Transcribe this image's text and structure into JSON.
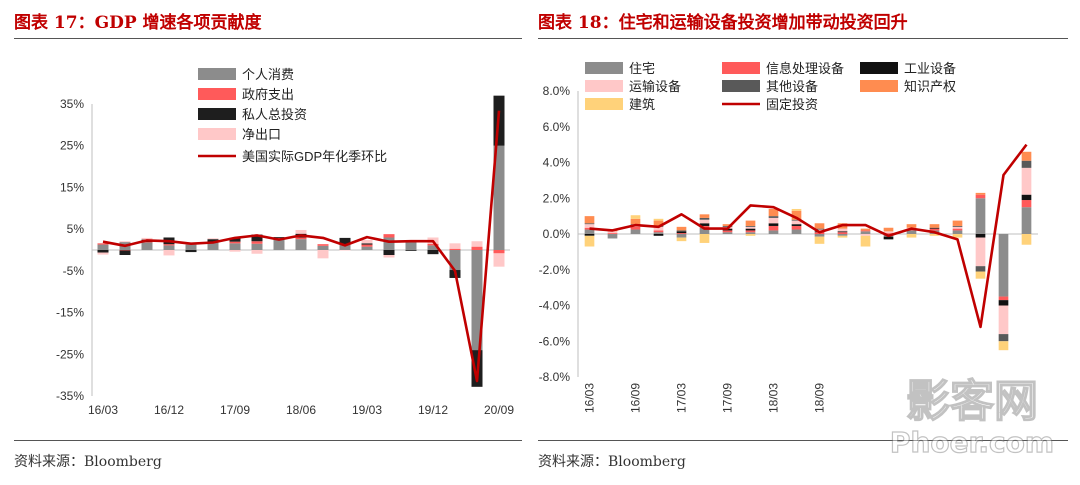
{
  "left": {
    "title": "图表 17：GDP 增速各项贡献度",
    "source": "资料来源：Bloomberg"
  },
  "right": {
    "title": "图表 18：住宅和运输设备投资增加带动投资回升",
    "source": "资料来源：Bloomberg"
  },
  "watermark": {
    "line1": "影客网",
    "line2": "Phoer.com"
  },
  "chart_data": [
    {
      "type": "bar",
      "stacked": true,
      "ylim": [
        -35,
        35
      ],
      "yticks": [
        "35%",
        "25%",
        "15%",
        "5%",
        "-5%",
        "-15%",
        "-25%",
        "-35%"
      ],
      "ytick_values": [
        35,
        25,
        15,
        5,
        -5,
        -15,
        -25,
        -35
      ],
      "xtick_labels": [
        "16/03",
        "16/12",
        "17/09",
        "18/06",
        "19/03",
        "19/12",
        "20/09"
      ],
      "xtick_indices": [
        0,
        3,
        6,
        9,
        12,
        15,
        18
      ],
      "legend_position": "top",
      "series": [
        {
          "name": "个人消费",
          "kind": "bar",
          "color": "#8c8c8c",
          "values": [
            1.3,
            1.9,
            1.8,
            1.1,
            1.3,
            1.9,
            1.6,
            1.5,
            2.5,
            2.6,
            1.0,
            1.3,
            0.8,
            3.0,
            2.1,
            1.1,
            -4.8,
            -24.0,
            25.0
          ]
        },
        {
          "name": "政府支出",
          "kind": "bar",
          "color": "#ff5a5a",
          "values": [
            0.3,
            -0.1,
            0.1,
            0.3,
            0.0,
            0.1,
            0.4,
            0.6,
            0.4,
            0.4,
            0.4,
            0.0,
            0.5,
            0.8,
            0.3,
            0.4,
            0.3,
            0.8,
            -0.8
          ]
        },
        {
          "name": "私人总投资",
          "kind": "bar",
          "color": "#1e1e1e",
          "values": [
            -0.6,
            -1.1,
            0.6,
            1.6,
            -0.5,
            0.6,
            0.9,
            1.6,
            0.2,
            0.9,
            0.0,
            1.6,
            0.3,
            -1.2,
            -0.2,
            -1.0,
            -1.9,
            -8.8,
            12.0
          ]
        },
        {
          "name": "净出口",
          "kind": "bar",
          "color": "#ffc8c8",
          "values": [
            -0.5,
            0.2,
            0.4,
            -1.3,
            0.3,
            0.2,
            -0.4,
            -0.9,
            0.0,
            0.9,
            -2.0,
            -0.1,
            0.8,
            -0.6,
            0.0,
            1.5,
            1.3,
            1.3,
            -3.2
          ]
        },
        {
          "name": "美国实际GDP年化季环比",
          "kind": "line",
          "color": "#c00000",
          "values": [
            2.0,
            1.0,
            2.3,
            2.1,
            1.5,
            1.8,
            2.9,
            3.5,
            2.5,
            3.5,
            2.9,
            1.1,
            3.1,
            2.0,
            2.1,
            2.1,
            -5.0,
            -31.4,
            33.4
          ]
        }
      ]
    },
    {
      "type": "bar",
      "stacked": true,
      "ylim": [
        -8,
        8
      ],
      "yticks": [
        "8.0%",
        "6.0%",
        "4.0%",
        "2.0%",
        "0.0%",
        "-2.0%",
        "-4.0%",
        "-6.0%",
        "-8.0%"
      ],
      "ytick_values": [
        8,
        6,
        4,
        2,
        0,
        -2,
        -4,
        -6,
        -8
      ],
      "xtick_labels": [
        "16/03",
        "16/09",
        "17/03",
        "17/09",
        "18/03",
        "18/09"
      ],
      "xtick_indices": [
        0,
        2,
        4,
        6,
        8,
        10
      ],
      "legend_position": "top",
      "series": [
        {
          "name": "住宅",
          "kind": "bar",
          "color": "#8c8c8c",
          "values": [
            0.25,
            -0.25,
            0.25,
            0.1,
            -0.2,
            0.35,
            0.1,
            0.1,
            0.2,
            0.25,
            -0.15,
            -0.1,
            0.15,
            -0.15,
            0.2,
            0.2,
            0.2,
            2.0,
            -3.5,
            1.5
          ]
        },
        {
          "name": "信息处理设备",
          "kind": "bar",
          "color": "#ff5a5a",
          "values": [
            0.1,
            0.05,
            0.15,
            0.1,
            0.05,
            0.1,
            0.1,
            0.1,
            0.25,
            0.2,
            0.1,
            0.1,
            0.05,
            0.05,
            0.05,
            0.1,
            0.1,
            0.2,
            -0.2,
            0.4
          ]
        },
        {
          "name": "工业设备",
          "kind": "bar",
          "color": "#111111",
          "values": [
            -0.1,
            0.0,
            0.0,
            -0.1,
            0.1,
            0.15,
            0.1,
            0.1,
            0.15,
            0.1,
            0.05,
            0.05,
            0.0,
            -0.15,
            0.0,
            0.05,
            0.0,
            -0.2,
            -0.3,
            0.3
          ]
        },
        {
          "name": "运输设备",
          "kind": "bar",
          "color": "#ffc8c8",
          "values": [
            0.2,
            0.1,
            0.1,
            0.2,
            0.0,
            0.2,
            0.1,
            0.1,
            0.3,
            0.2,
            0.1,
            0.15,
            -0.1,
            0.1,
            0.1,
            0.0,
            0.1,
            -1.6,
            -1.6,
            1.5
          ]
        },
        {
          "name": "其他设备",
          "kind": "bar",
          "color": "#595959",
          "values": [
            0.05,
            0.0,
            0.05,
            0.05,
            0.05,
            0.1,
            0.05,
            0.05,
            0.1,
            0.05,
            0.05,
            0.0,
            0.0,
            0.0,
            0.0,
            0.0,
            0.05,
            -0.3,
            -0.4,
            0.4
          ]
        },
        {
          "name": "知识产权",
          "kind": "bar",
          "color": "#ff8c50",
          "values": [
            0.4,
            0.05,
            0.3,
            0.3,
            0.2,
            0.2,
            0.1,
            0.3,
            0.4,
            0.5,
            0.3,
            0.3,
            0.1,
            0.2,
            0.2,
            0.2,
            0.3,
            0.1,
            0.0,
            0.5
          ]
        },
        {
          "name": "建筑",
          "kind": "bar",
          "color": "#ffd27a",
          "values": [
            -0.6,
            0.0,
            0.2,
            0.1,
            -0.2,
            -0.5,
            0.0,
            -0.1,
            0.0,
            0.1,
            -0.4,
            -0.1,
            -0.6,
            0.0,
            -0.2,
            -0.1,
            -0.2,
            -0.4,
            -0.5,
            -0.6
          ]
        },
        {
          "name": "固定投资",
          "kind": "line",
          "color": "#c00000",
          "values": [
            0.3,
            0.2,
            0.5,
            0.4,
            1.1,
            0.3,
            0.3,
            1.6,
            1.5,
            0.9,
            0.1,
            0.5,
            0.5,
            -0.1,
            0.3,
            0.1,
            -0.3,
            -5.2,
            3.3,
            5.0
          ]
        }
      ]
    }
  ]
}
